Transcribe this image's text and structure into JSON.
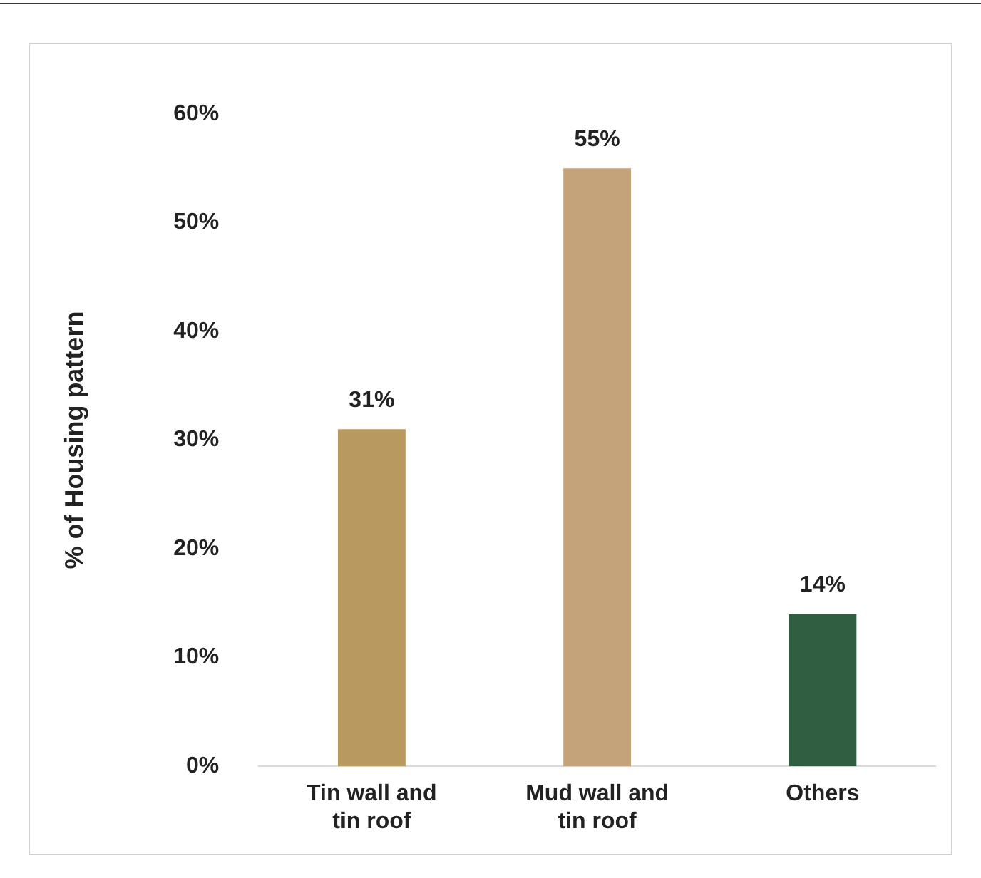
{
  "chart_data": {
    "type": "bar",
    "ylabel": "% of Housing pattern",
    "categories": [
      "Tin wall and tin roof",
      "Mud wall and tin roof",
      "Others"
    ],
    "values": [
      31,
      55,
      14
    ],
    "value_labels": [
      "31%",
      "55%",
      "14%"
    ],
    "colors": [
      "#b89a60",
      "#c4a27a",
      "#2f5f40"
    ],
    "ylim": [
      0,
      60
    ],
    "yticks": [
      {
        "value": 0,
        "label": "0%"
      },
      {
        "value": 10,
        "label": "10%"
      },
      {
        "value": 20,
        "label": "20%"
      },
      {
        "value": 30,
        "label": "30%"
      },
      {
        "value": 40,
        "label": "40%"
      },
      {
        "value": 50,
        "label": "50%"
      },
      {
        "value": 60,
        "label": "60%"
      }
    ],
    "grid": false,
    "legend": false
  }
}
